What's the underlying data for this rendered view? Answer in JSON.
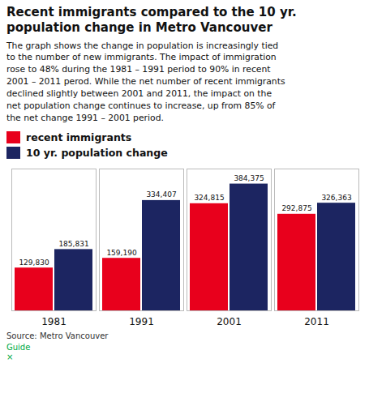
{
  "chart_data": {
    "type": "bar",
    "title": "Recent immigrants compared to the 10 yr.\npopulation change in Metro Vancouver",
    "subtitle": "The graph shows the change in population is increasingly tied\nto the number of new immigrants. The impact of immigration\nrose to 48% during the 1981 – 1991 period to 90% in recent\n2001 – 2011 perod. While the net number of recent immigrants\ndeclined slightly between 2001 and 2011, the impact on the\nnet population change continues to increase, up from 85% of\nthe net change 1991 – 2001 period.",
    "categories": [
      "1981",
      "1991",
      "2001",
      "2011"
    ],
    "series": [
      {
        "name": "recent immigrants",
        "color": "#e8001c",
        "values": [
          129830,
          159190,
          324815,
          292875
        ],
        "value_labels": [
          "129,830",
          "159,190",
          "324,815",
          "292,875"
        ]
      },
      {
        "name": "10 yr. population change",
        "color": "#1c2561",
        "values": [
          185831,
          334407,
          384375,
          326363
        ],
        "value_labels": [
          "185,831",
          "334,407",
          "384,375",
          "326,363"
        ]
      }
    ],
    "ylim": [
      0,
      430000
    ],
    "tick_labels": "x",
    "grid": false,
    "legend": "top-left",
    "data_labels": true,
    "annotations": [
      {
        "text": "Source: Metro Vancouver"
      },
      {
        "text": "Guide\n×",
        "color": "#00aa44"
      }
    ]
  }
}
